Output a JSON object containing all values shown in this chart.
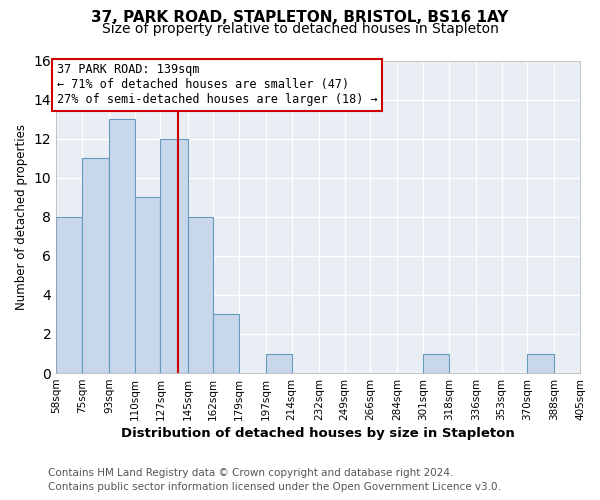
{
  "title": "37, PARK ROAD, STAPLETON, BRISTOL, BS16 1AY",
  "subtitle": "Size of property relative to detached houses in Stapleton",
  "xlabel": "Distribution of detached houses by size in Stapleton",
  "ylabel": "Number of detached properties",
  "bin_edges": [
    58,
    75,
    93,
    110,
    127,
    145,
    162,
    179,
    197,
    214,
    232,
    249,
    266,
    284,
    301,
    318,
    336,
    353,
    370,
    388,
    405
  ],
  "bin_counts": [
    8,
    11,
    13,
    9,
    12,
    8,
    3,
    0,
    1,
    0,
    0,
    0,
    0,
    0,
    1,
    0,
    0,
    0,
    1,
    0
  ],
  "bar_color": "#c8d8ea",
  "bar_edge_color": "#6699bb",
  "property_size": 139,
  "property_line_color": "#cc0000",
  "annotation_line1": "37 PARK ROAD: 139sqm",
  "annotation_line2": "← 71% of detached houses are smaller (47)",
  "annotation_line3": "27% of semi-detached houses are larger (18) →",
  "annotation_box_edge_color": "#cc0000",
  "ylim": [
    0,
    16
  ],
  "yticks": [
    0,
    2,
    4,
    6,
    8,
    10,
    12,
    14,
    16
  ],
  "tick_labels": [
    "58sqm",
    "75sqm",
    "93sqm",
    "110sqm",
    "127sqm",
    "145sqm",
    "162sqm",
    "179sqm",
    "197sqm",
    "214sqm",
    "232sqm",
    "249sqm",
    "266sqm",
    "284sqm",
    "301sqm",
    "318sqm",
    "336sqm",
    "353sqm",
    "370sqm",
    "388sqm",
    "405sqm"
  ],
  "footer_line1": "Contains HM Land Registry data © Crown copyright and database right 2024.",
  "footer_line2": "Contains public sector information licensed under the Open Government Licence v3.0.",
  "background_color": "#ffffff",
  "plot_bg_color": "#e8eef4",
  "grid_color": "#ffffff",
  "title_fontsize": 11,
  "subtitle_fontsize": 10,
  "xlabel_fontsize": 9.5,
  "ylabel_fontsize": 8.5,
  "tick_fontsize": 7.5,
  "annotation_fontsize": 8.5,
  "footer_fontsize": 7.5
}
